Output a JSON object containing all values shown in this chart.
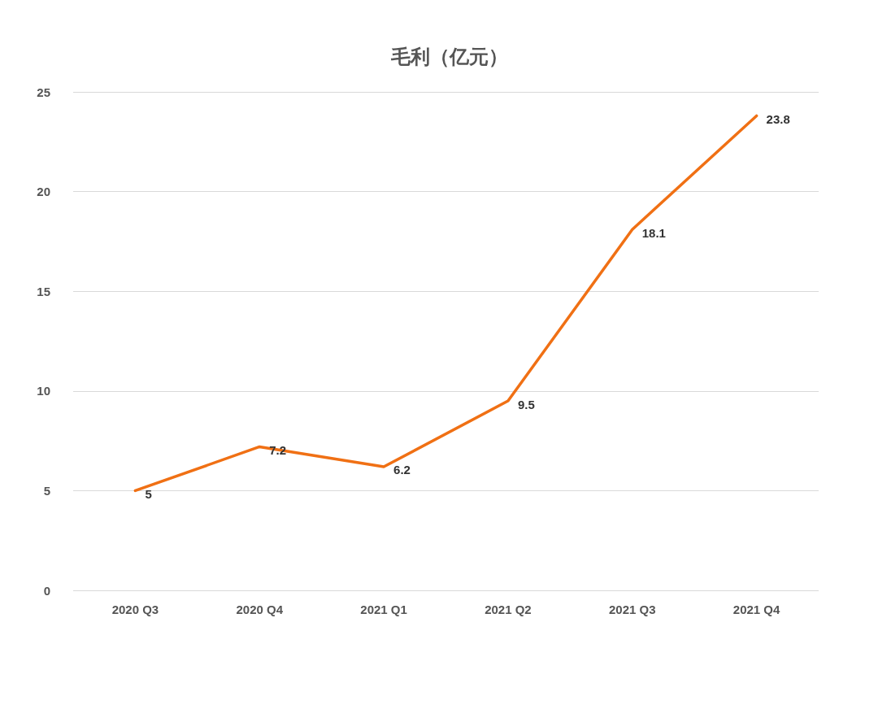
{
  "chart_data": {
    "type": "line",
    "title": "毛利（亿元）",
    "categories": [
      "2020 Q3",
      "2020 Q4",
      "2021 Q1",
      "2021 Q2",
      "2021 Q3",
      "2021 Q4"
    ],
    "series": [
      {
        "color": "#f07014",
        "values": [
          5,
          7.2,
          6.2,
          9.5,
          18.1,
          23.8
        ]
      }
    ],
    "ylim": [
      0,
      25
    ],
    "yticks": [
      0,
      5,
      10,
      15,
      20,
      25
    ],
    "grid": "y",
    "marker": "none",
    "line_style": "solid",
    "data_labels": true
  }
}
